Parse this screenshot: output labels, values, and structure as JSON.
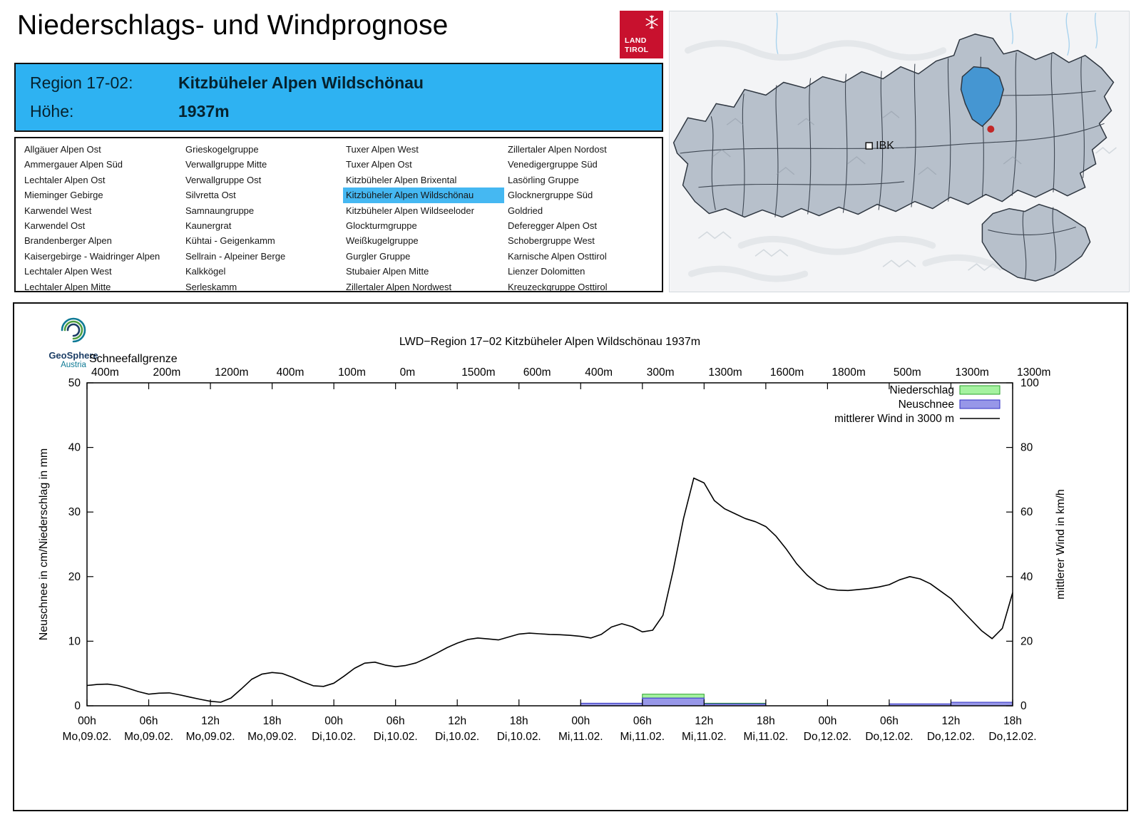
{
  "header": {
    "title": "Niederschlags- und Windprognose",
    "logo": {
      "line1": "LAND",
      "line2": "TIROL"
    },
    "region_label": "Region 17-02:",
    "region_name": "Kitzbüheler Alpen Wildschönau",
    "hoehe_label": "Höhe:",
    "hoehe_value": "1937m"
  },
  "colors": {
    "header_blue": "#2eb2f2",
    "highlight_blue": "#45b8f2",
    "logo_red": "#c8112e",
    "map_highlight": "#4596d2",
    "map_marker_red": "#c22727"
  },
  "region_list": {
    "selected": "Kitzbüheler Alpen Wildschönau",
    "columns": [
      [
        "Allgäuer Alpen Ost",
        "Ammergauer Alpen Süd",
        "Lechtaler Alpen Ost",
        "Mieminger Gebirge",
        "Karwendel West",
        "Karwendel Ost",
        "Brandenberger Alpen",
        "Kaisergebirge - Waidringer Alpen",
        "Lechtaler Alpen West",
        "Lechtaler Alpen Mitte"
      ],
      [
        "Grieskogelgruppe",
        "Verwallgruppe Mitte",
        "Verwallgruppe Ost",
        "Silvretta Ost",
        "Samnaungruppe",
        "Kaunergrat",
        "Kühtai - Geigenkamm",
        "Sellrain - Alpeiner Berge",
        "Kalkkögel",
        "Serleskamm"
      ],
      [
        "Tuxer Alpen West",
        "Tuxer Alpen Ost",
        "Kitzbüheler Alpen Brixental",
        "Kitzbüheler Alpen Wildschönau",
        "Kitzbüheler Alpen Wildseeloder",
        "Glockturmgruppe",
        "Weißkugelgruppe",
        "Gurgler Gruppe",
        "Stubaier Alpen Mitte",
        "Zillertaler Alpen Nordwest"
      ],
      [
        "Zillertaler Alpen Nordost",
        "Venedigergruppe Süd",
        "Lasörling Gruppe",
        "Glocknergruppe Süd",
        "Goldried",
        "Deferegger Alpen Ost",
        "Schobergruppe West",
        "Karnische Alpen Osttirol",
        "Lienzer Dolomitten",
        "Kreuzeckgruppe Osttirol"
      ]
    ]
  },
  "map": {
    "ibk_label": "IBK"
  },
  "branding": {
    "line1": "GeoSphere",
    "line2": "Austria"
  },
  "chart_data": {
    "type": "line+bar",
    "title": "LWD−Region 17−02 Kitzbüheler Alpen Wildschönau 1937m",
    "ylabel_left": "Neuschnee in cm/Niederschlag in mm",
    "ylabel_right": "mittlerer Wind in km/h",
    "ylim_left": [
      0,
      50
    ],
    "ylim_right": [
      0,
      100
    ],
    "x_range": [
      0,
      90
    ],
    "x_tick_step_hours": 6,
    "x_ticks": [
      {
        "hour": "00h",
        "day": "Mo,09.02."
      },
      {
        "hour": "06h",
        "day": "Mo,09.02."
      },
      {
        "hour": "12h",
        "day": "Mo,09.02."
      },
      {
        "hour": "18h",
        "day": "Mo,09.02."
      },
      {
        "hour": "00h",
        "day": "Di,10.02."
      },
      {
        "hour": "06h",
        "day": "Di,10.02."
      },
      {
        "hour": "12h",
        "day": "Di,10.02."
      },
      {
        "hour": "18h",
        "day": "Di,10.02."
      },
      {
        "hour": "00h",
        "day": "Mi,11.02."
      },
      {
        "hour": "06h",
        "day": "Mi,11.02."
      },
      {
        "hour": "12h",
        "day": "Mi,11.02."
      },
      {
        "hour": "18h",
        "day": "Mi,11.02."
      },
      {
        "hour": "00h",
        "day": "Do,12.02."
      },
      {
        "hour": "06h",
        "day": "Do,12.02."
      },
      {
        "hour": "12h",
        "day": "Do,12.02."
      },
      {
        "hour": "18h",
        "day": "Do,12.02."
      }
    ],
    "snowline": {
      "label": "Schneefallgrenze",
      "values": [
        "400m",
        "200m",
        "1200m",
        "400m",
        "100m",
        "0m",
        "1500m",
        "600m",
        "400m",
        "300m",
        "1300m",
        "1600m",
        "1800m",
        "500m",
        "1300m",
        "1300m"
      ]
    },
    "legend": [
      {
        "label": "Niederschlag",
        "type": "box",
        "fill": "#a5f2a0",
        "stroke": "#2ba12b"
      },
      {
        "label": "Neuschnee",
        "type": "box",
        "fill": "#9797e8",
        "stroke": "#2f2fc4"
      },
      {
        "label": "mittlerer Wind in 3000 m",
        "type": "line",
        "stroke": "#000000"
      }
    ],
    "wind": {
      "name": "mittlerer Wind in 3000 m",
      "unit": "km/h",
      "x": [
        0,
        1,
        2,
        3,
        4,
        5,
        6,
        7,
        8,
        9,
        10,
        11,
        12,
        13,
        14,
        15,
        16,
        17,
        18,
        19,
        20,
        21,
        22,
        23,
        24,
        25,
        26,
        27,
        28,
        29,
        30,
        31,
        32,
        33,
        34,
        35,
        36,
        37,
        38,
        39,
        40,
        41,
        42,
        43,
        44,
        45,
        46,
        47,
        48,
        49,
        50,
        51,
        52,
        53,
        54,
        55,
        56,
        57,
        58,
        59,
        60,
        61,
        62,
        63,
        64,
        65,
        66,
        67,
        68,
        69,
        70,
        71,
        72,
        73,
        74,
        75,
        76,
        77,
        78,
        79,
        80,
        81,
        82,
        83,
        84,
        85,
        86,
        87,
        88,
        89,
        90
      ],
      "values": [
        6.3,
        6.6,
        6.7,
        6.3,
        5.4,
        4.4,
        3.6,
        3.9,
        4.0,
        3.4,
        2.7,
        2.0,
        1.4,
        1.1,
        2.4,
        5.2,
        8.2,
        9.8,
        10.3,
        10.0,
        8.8,
        7.4,
        6.2,
        6.0,
        7.0,
        9.2,
        11.6,
        13.2,
        13.5,
        12.6,
        12.1,
        12.5,
        13.3,
        14.7,
        16.3,
        18.0,
        19.4,
        20.5,
        21.0,
        20.7,
        20.4,
        21.3,
        22.2,
        22.5,
        22.3,
        22.1,
        22.0,
        21.8,
        21.5,
        21.0,
        22.1,
        24.4,
        25.4,
        24.5,
        22.9,
        23.4,
        28.0,
        42.0,
        58.0,
        70.5,
        69.0,
        63.5,
        61.0,
        59.5,
        58.0,
        57.0,
        55.5,
        52.5,
        48.5,
        44.0,
        40.5,
        37.8,
        36.2,
        35.8,
        35.7,
        36.0,
        36.3,
        36.8,
        37.5,
        39.0,
        40.0,
        39.3,
        37.8,
        35.5,
        33.2,
        29.8,
        26.5,
        23.2,
        20.8,
        24.0,
        35.0
      ]
    },
    "bars": {
      "interval_hours": 6,
      "start_hours": [
        0,
        6,
        12,
        18,
        24,
        30,
        36,
        42,
        48,
        54,
        60,
        66,
        72,
        78,
        84
      ],
      "niederschlag_mm": [
        0,
        0,
        0,
        0,
        0,
        0,
        0,
        0,
        0,
        1.8,
        0.4,
        0,
        0,
        0.2,
        0.35
      ],
      "neuschnee_cm": [
        0,
        0,
        0,
        0,
        0,
        0,
        0,
        0,
        0.4,
        1.2,
        0.3,
        0,
        0,
        0.3,
        0.55
      ]
    }
  }
}
